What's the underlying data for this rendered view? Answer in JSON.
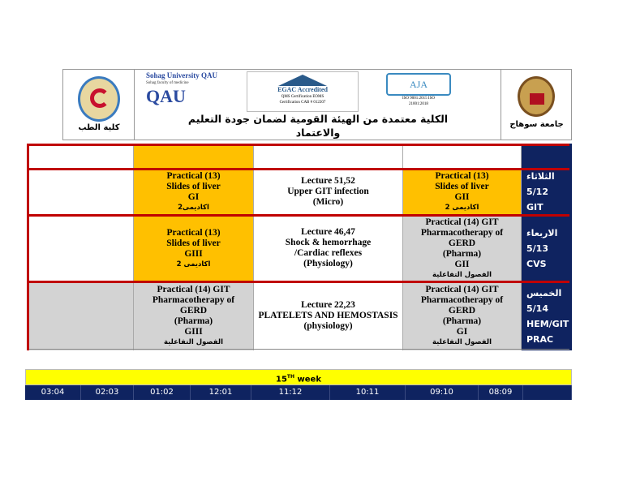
{
  "header": {
    "faculty_label": "كلية الطب",
    "university_label": "جامعة  سوهاج",
    "accreditation_line1": "الكلية معتمدة من الهيئة القومية لضمان جودة التعليم",
    "accreditation_line2": "والاعتماد",
    "logos": {
      "qau": "Sohag University QAU",
      "qau_sub": "Sohag faculty of medicine",
      "egac": "EGAC Accredited",
      "egac_sub": "QMS Certification EOMS Certification CAB # 012207",
      "aja": "AJA",
      "aja_sub": "ISO 9001:2015 ISO 21001:2018"
    }
  },
  "rows": [
    {
      "day": "",
      "cells": [
        {
          "lines": []
        },
        {
          "lines": []
        },
        {
          "lines": []
        },
        {
          "lines": []
        }
      ]
    },
    {
      "day": [
        "الثلاثاء",
        "5/12",
        "GIT"
      ],
      "cells": [
        {
          "lines": []
        },
        {
          "lines": [
            "Practical (13)",
            "Slides of liver",
            "GI"
          ],
          "ar": "اكاديمى2"
        },
        {
          "lines": [
            "Lecture 51,52",
            "Upper GIT infection",
            "(Micro)"
          ]
        },
        {
          "lines": [
            "Practical (13)",
            "Slides of liver",
            "GII"
          ],
          "ar": "اكاديمى 2"
        }
      ]
    },
    {
      "day": [
        "الاربعاء",
        "5/13",
        "CVS"
      ],
      "cells": [
        {
          "lines": []
        },
        {
          "lines": [
            "Practical (13)",
            "Slides of liver",
            "GIII"
          ],
          "ar": "اكاديمى 2"
        },
        {
          "lines": [
            "Lecture 46,47",
            "Shock & hemorrhage",
            "/Cardiac reflexes",
            "(Physiology)"
          ]
        },
        {
          "lines": [
            "Practical (14) GIT",
            "Pharmacotherapy of",
            "GERD",
            "(Pharma)",
            "GII"
          ],
          "ar": "الفصول التفاعلية"
        }
      ]
    },
    {
      "day": [
        "الخميس",
        "5/14",
        "HEM/GIT",
        "PRAC"
      ],
      "cells": [
        {
          "lines": []
        },
        {
          "lines": [
            "Practical (14) GIT",
            "Pharmacotherapy of",
            "GERD",
            "(Pharma)",
            "GIII"
          ],
          "ar": "الفصول التفاعلية"
        },
        {
          "lines": [
            "Lecture 22,23",
            "PLATELETS AND HEMOSTASIS",
            "(physiology)"
          ]
        },
        {
          "lines": [
            "Practical (14) GIT",
            "Pharmacotherapy of",
            "GERD",
            "(Pharma)",
            "GI"
          ],
          "ar": "الفصول التفاعلية"
        }
      ]
    }
  ],
  "week": {
    "num": "15",
    "sup": "TH",
    "label": " week"
  },
  "times": [
    "03:04",
    "02:03",
    "01:02",
    "12:01",
    "11:12",
    "10:11",
    "09:10",
    "08:09",
    ""
  ],
  "colors": {
    "navy": "#0f2360",
    "practical": "#ffc000",
    "pharma": "#d3d3d3",
    "border": "#c00000",
    "week": "#ffff00"
  }
}
